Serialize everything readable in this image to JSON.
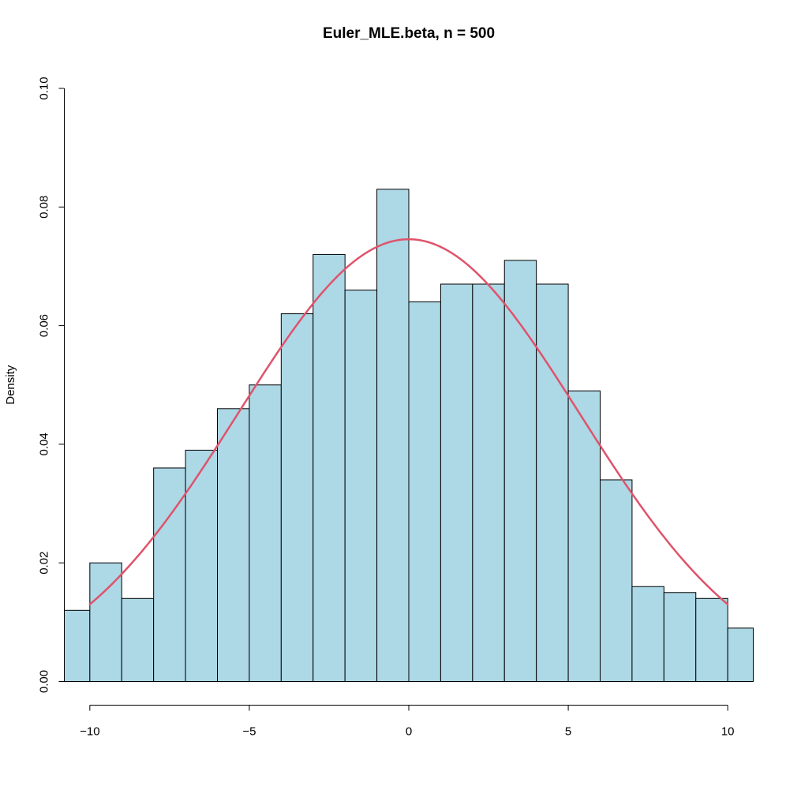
{
  "chart_data": {
    "type": "bar",
    "title": "Euler_MLE.beta, n = 500",
    "xlabel": "",
    "ylabel": "Density",
    "bin_edges": [
      -11,
      -10,
      -9,
      -8,
      -7,
      -6,
      -5,
      -4,
      -3,
      -2,
      -1,
      0,
      1,
      2,
      3,
      4,
      5,
      6,
      7,
      8,
      9,
      10,
      11
    ],
    "values": [
      0.012,
      0.02,
      0.014,
      0.036,
      0.039,
      0.046,
      0.05,
      0.062,
      0.072,
      0.066,
      0.083,
      0.064,
      0.067,
      0.067,
      0.071,
      0.067,
      0.049,
      0.034,
      0.016,
      0.015,
      0.014,
      0.009
    ],
    "xlim": [
      -10.8,
      10.8
    ],
    "ylim": [
      0,
      0.1
    ],
    "x_ticks": [
      -10,
      -5,
      0,
      5,
      10
    ],
    "x_tick_labels": [
      "−10",
      "−5",
      "0",
      "5",
      "10"
    ],
    "y_ticks": [
      0,
      0.02,
      0.04,
      0.06,
      0.08,
      0.1
    ],
    "y_tick_labels": [
      "0.00",
      "0.02",
      "0.04",
      "0.06",
      "0.08",
      "0.10"
    ],
    "curve": {
      "type": "normal-density",
      "mean": 0,
      "sd": 5.35,
      "x_range": [
        -10,
        10
      ]
    },
    "colors": {
      "bar_fill": "#add8e6",
      "bar_stroke": "#000000",
      "curve": "#df536b"
    },
    "grid": false
  }
}
